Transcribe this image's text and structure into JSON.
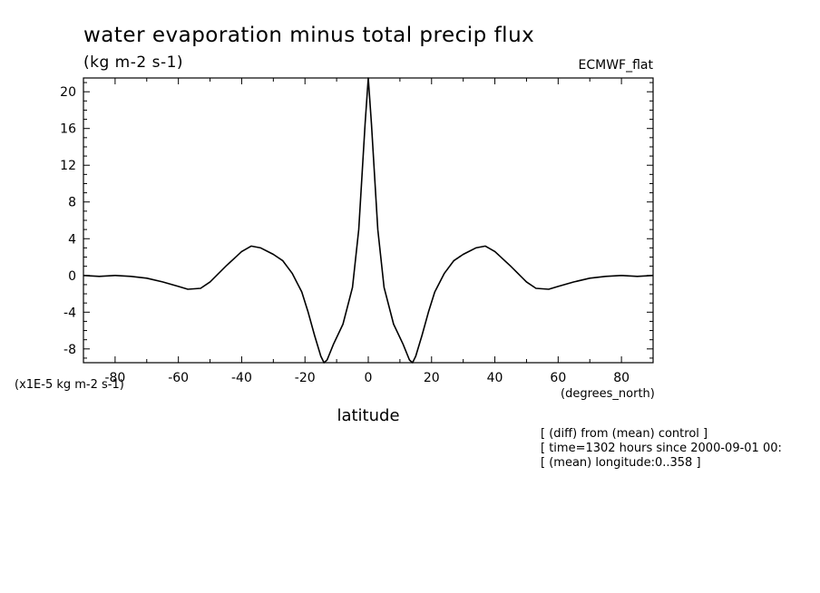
{
  "chart_data": {
    "type": "line",
    "title": "water evaporation minus total precip flux",
    "units": "(kg m-2 s-1)",
    "model": "ECMWF_flat",
    "xlabel": "latitude",
    "x_units": "(degrees_north)",
    "y_scale_label": "(x1E-5 kg m-2 s-1)",
    "xlim": [
      -90,
      90
    ],
    "ylim": [
      -9.5,
      21.5
    ],
    "x_ticks": [
      -80,
      -60,
      -40,
      -20,
      0,
      20,
      40,
      60,
      80
    ],
    "x_tick_labels": [
      "-80",
      "-60",
      "-40",
      "-20",
      "0",
      "20",
      "40",
      "60",
      "80"
    ],
    "y_ticks": [
      -8,
      -4,
      0,
      4,
      8,
      12,
      16,
      20
    ],
    "y_tick_labels": [
      "-8",
      "-4",
      "0",
      "4",
      "8",
      "12",
      "16",
      "20"
    ],
    "grid": false,
    "series": [
      {
        "x": [
          -90,
          -85,
          -80,
          -75,
          -70,
          -65,
          -60,
          -57,
          -53,
          -50,
          -45,
          -40,
          -37,
          -34,
          -30,
          -27,
          -24,
          -21,
          -19,
          -17,
          -15,
          -14,
          -13,
          -11,
          -8,
          -5,
          -3,
          -1,
          0,
          1,
          3,
          5,
          8,
          11,
          13,
          14,
          15,
          17,
          19,
          21,
          24,
          27,
          30,
          34,
          37,
          40,
          45,
          50,
          53,
          57,
          60,
          65,
          70,
          75,
          80,
          85,
          90
        ],
        "y": [
          0.0,
          -0.1,
          0.0,
          -0.1,
          -0.3,
          -0.7,
          -1.2,
          -1.5,
          -1.4,
          -0.7,
          1.0,
          2.6,
          3.2,
          3.0,
          2.3,
          1.6,
          0.2,
          -1.8,
          -4.0,
          -6.5,
          -8.8,
          -9.5,
          -9.2,
          -7.5,
          -5.3,
          -1.3,
          5.0,
          16.5,
          21.5,
          16.5,
          5.0,
          -1.3,
          -5.3,
          -7.5,
          -9.2,
          -9.5,
          -8.8,
          -6.5,
          -4.0,
          -1.8,
          0.2,
          1.6,
          2.3,
          3.0,
          3.2,
          2.6,
          1.0,
          -0.7,
          -1.4,
          -1.5,
          -1.2,
          -0.7,
          -0.3,
          -0.1,
          0.0,
          -0.1,
          0.0
        ]
      }
    ]
  },
  "info_lines": [
    "[ (diff) from (mean) control ]",
    "[ time=1302 hours since 2000-09-01 00:",
    "[ (mean) longitude:0..358 ]"
  ]
}
